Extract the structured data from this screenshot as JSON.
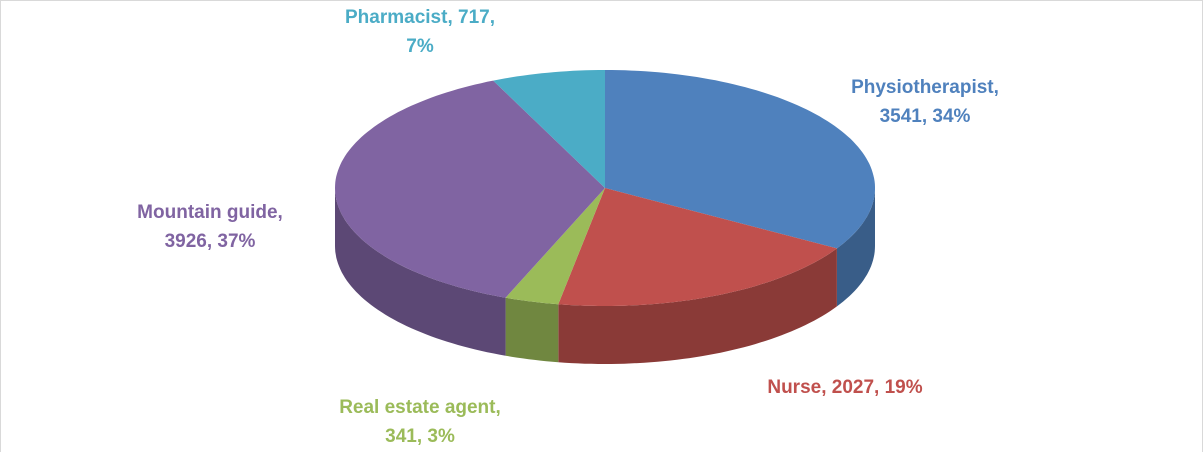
{
  "chart_data": {
    "type": "pie",
    "three_d": true,
    "categories": [
      "Physiotherapist",
      "Nurse",
      "Real estate agent",
      "Mountain guide",
      "Pharmacist"
    ],
    "values": [
      3541,
      2027,
      341,
      3926,
      717
    ],
    "value_labels": [
      [
        "Physiotherapist,",
        "3541, 34%"
      ],
      [
        "Nurse, 2027, 19%"
      ],
      [
        "Real estate agent,",
        "341, 3%"
      ],
      [
        "Mountain guide,",
        "3926, 37%"
      ],
      [
        "Pharmacist, 717,",
        "7%"
      ]
    ],
    "colors": [
      "#4f81bd",
      "#c0504d",
      "#9bbb59",
      "#8064a2",
      "#4bacc6"
    ]
  }
}
